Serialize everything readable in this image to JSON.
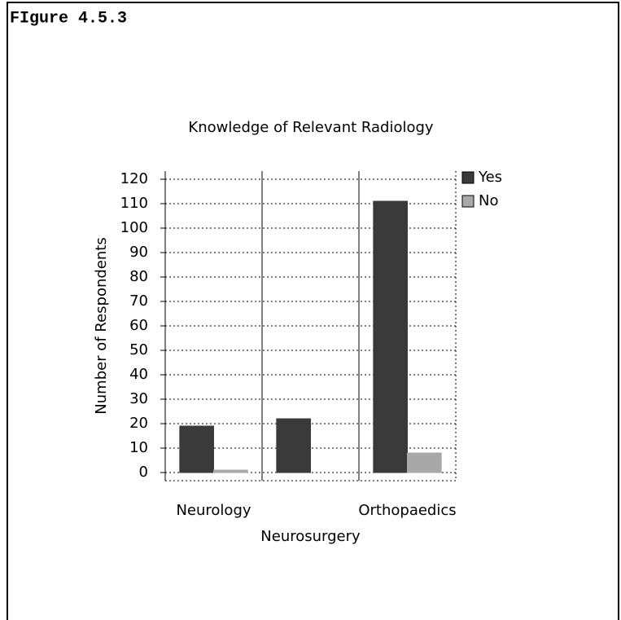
{
  "figure_label": "FIgure 4.5.3",
  "chart_data": {
    "type": "bar",
    "title": "Knowledge of Relevant Radiology",
    "ylabel": "Number of Respondents",
    "categories": [
      "Neurology",
      "Neurosurgery",
      "Orthopaedics"
    ],
    "series": [
      {
        "name": "Yes",
        "color": "#3a3a3a",
        "values": [
          19,
          22,
          111
        ]
      },
      {
        "name": "No",
        "color": "#a8a8a8",
        "values": [
          1,
          0,
          8
        ]
      }
    ],
    "ylim": [
      0,
      120
    ],
    "yticks": [
      0,
      10,
      20,
      30,
      40,
      50,
      60,
      70,
      80,
      90,
      100,
      110,
      120
    ],
    "grid": true,
    "legend": "upper right"
  }
}
